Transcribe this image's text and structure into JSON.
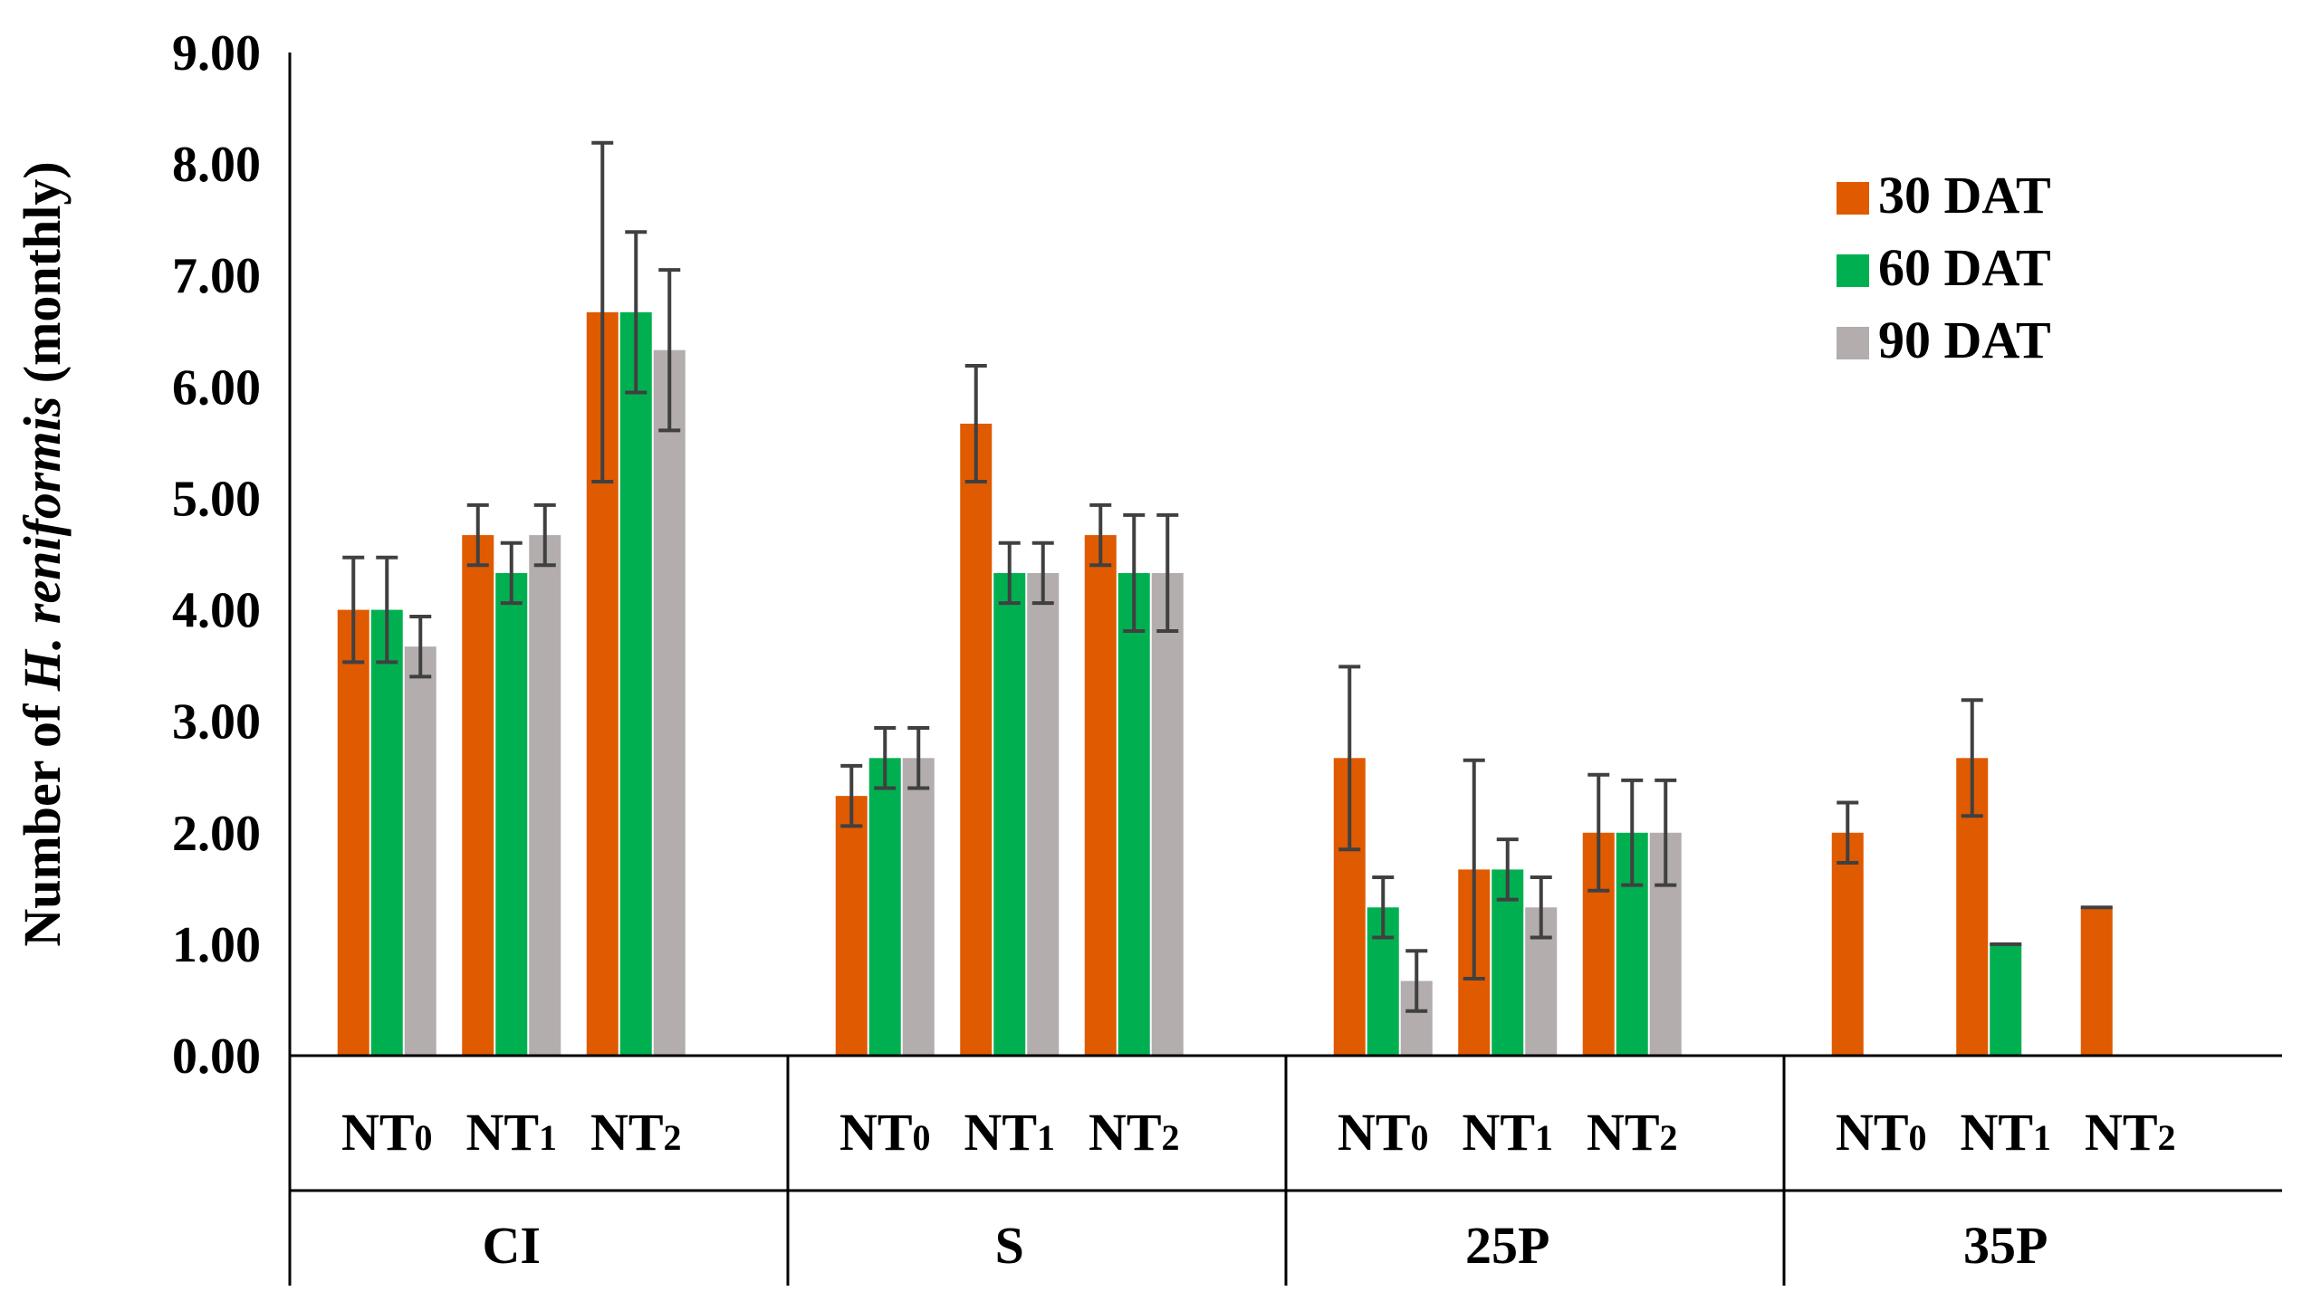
{
  "chart_data": {
    "type": "bar",
    "title": "",
    "ylabel_prefix": "Number of ",
    "ylabel_italic": "H. reniformis",
    "ylabel_suffix": " (monthly)",
    "ylim": [
      0,
      9
    ],
    "yticks": [
      "0.00",
      "1.00",
      "2.00",
      "3.00",
      "4.00",
      "5.00",
      "6.00",
      "7.00",
      "8.00",
      "9.00"
    ],
    "groups": [
      {
        "name": "CI",
        "categories": [
          {
            "label_main": "NT",
            "label_sub": "0",
            "values": [
              4.0,
              4.0,
              3.67
            ],
            "errors": [
              0.47,
              0.47,
              0.27
            ]
          },
          {
            "label_main": "NT",
            "label_sub": "1",
            "values": [
              4.67,
              4.33,
              4.67
            ],
            "errors": [
              0.27,
              0.27,
              0.27
            ]
          },
          {
            "label_main": "NT",
            "label_sub": "2",
            "values": [
              6.67,
              6.67,
              6.33
            ],
            "errors": [
              1.52,
              0.72,
              0.72
            ]
          }
        ]
      },
      {
        "name": "S",
        "categories": [
          {
            "label_main": "NT",
            "label_sub": "0",
            "values": [
              2.33,
              2.67,
              2.67
            ],
            "errors": [
              0.27,
              0.27,
              0.27
            ]
          },
          {
            "label_main": "NT",
            "label_sub": "1",
            "values": [
              5.67,
              4.33,
              4.33
            ],
            "errors": [
              0.52,
              0.27,
              0.27
            ]
          },
          {
            "label_main": "NT",
            "label_sub": "2",
            "values": [
              4.67,
              4.33,
              4.33
            ],
            "errors": [
              0.27,
              0.52,
              0.52
            ]
          }
        ]
      },
      {
        "name": "25P",
        "categories": [
          {
            "label_main": "NT",
            "label_sub": "0",
            "values": [
              2.67,
              1.33,
              0.67
            ],
            "errors": [
              0.82,
              0.27,
              0.27
            ]
          },
          {
            "label_main": "NT",
            "label_sub": "1",
            "values": [
              1.67,
              1.67,
              1.33
            ],
            "errors": [
              0.98,
              0.27,
              0.27
            ]
          },
          {
            "label_main": "NT",
            "label_sub": "2",
            "values": [
              2.0,
              2.0,
              2.0
            ],
            "errors": [
              0.52,
              0.47,
              0.47
            ]
          }
        ]
      },
      {
        "name": "35P",
        "categories": [
          {
            "label_main": "NT",
            "label_sub": "0",
            "values": [
              2.0,
              0,
              0
            ],
            "errors": [
              0.27,
              0,
              0
            ]
          },
          {
            "label_main": "NT",
            "label_sub": "1",
            "values": [
              2.67,
              1.0,
              0
            ],
            "errors": [
              0.52,
              0,
              0
            ]
          },
          {
            "label_main": "NT",
            "label_sub": "2",
            "values": [
              1.33,
              0,
              0
            ],
            "errors": [
              0,
              0,
              0
            ]
          }
        ]
      }
    ],
    "series": [
      {
        "name": "30 DAT",
        "color": "#E05A00"
      },
      {
        "name": "60 DAT",
        "color": "#00B050"
      },
      {
        "name": "90 DAT",
        "color": "#B3ADAD"
      }
    ],
    "legend_position": "top-right",
    "grid": false
  }
}
